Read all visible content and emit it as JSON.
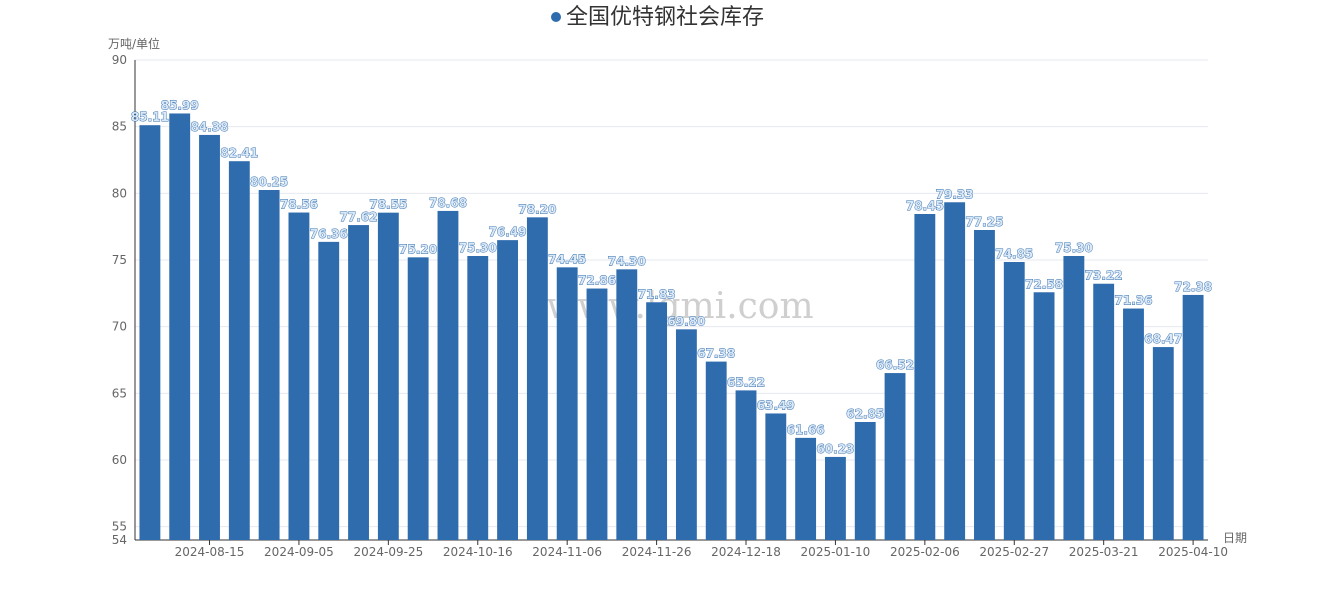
{
  "chart_data": {
    "type": "bar",
    "title": "全国优特钢社会库存",
    "y_label": "万吨/单位",
    "x_label": "日期",
    "watermark": "www.lgmi.com",
    "categories": [
      null,
      null,
      "2024-08-15",
      null,
      null,
      "2024-09-05",
      null,
      null,
      "2024-09-25",
      null,
      null,
      "2024-10-16",
      null,
      null,
      "2024-11-06",
      null,
      null,
      "2024-11-26",
      null,
      null,
      "2024-12-18",
      null,
      null,
      "2025-01-10",
      null,
      null,
      "2025-02-06",
      null,
      null,
      "2025-02-27",
      null,
      null,
      "2025-03-21",
      null,
      null,
      "2025-04-10"
    ],
    "values": [
      85.11,
      85.99,
      84.38,
      82.41,
      80.25,
      78.56,
      76.36,
      77.62,
      78.55,
      75.2,
      78.68,
      75.3,
      76.49,
      78.2,
      74.45,
      72.86,
      74.3,
      71.83,
      69.8,
      67.38,
      65.22,
      63.49,
      61.66,
      60.23,
      62.85,
      66.52,
      78.45,
      79.33,
      77.25,
      74.85,
      72.58,
      75.3,
      73.22,
      71.36,
      68.47,
      72.38
    ],
    "value_labels": [
      "85.11",
      "85.99",
      "84.38",
      "82.41",
      "80.25",
      "78.56",
      "76.36",
      "77.62",
      "78.55",
      "75.20",
      "78.68",
      "75.30",
      "76.49",
      "78.20",
      "74.45",
      "72.86",
      "74.30",
      "71.83",
      "69.80",
      "67.38",
      "65.22",
      "63.49",
      "61.66",
      "60.23",
      "62.85",
      "66.52",
      "78.45",
      "79.33",
      "77.25",
      "74.85",
      "72.58",
      "75.30",
      "73.22",
      "71.36",
      "68.47",
      "72.38"
    ],
    "color": "#2e6cae",
    "ylim": [
      54,
      90
    ],
    "yticks": [
      54,
      55,
      60,
      65,
      70,
      75,
      80,
      85,
      90
    ],
    "grid": true
  }
}
